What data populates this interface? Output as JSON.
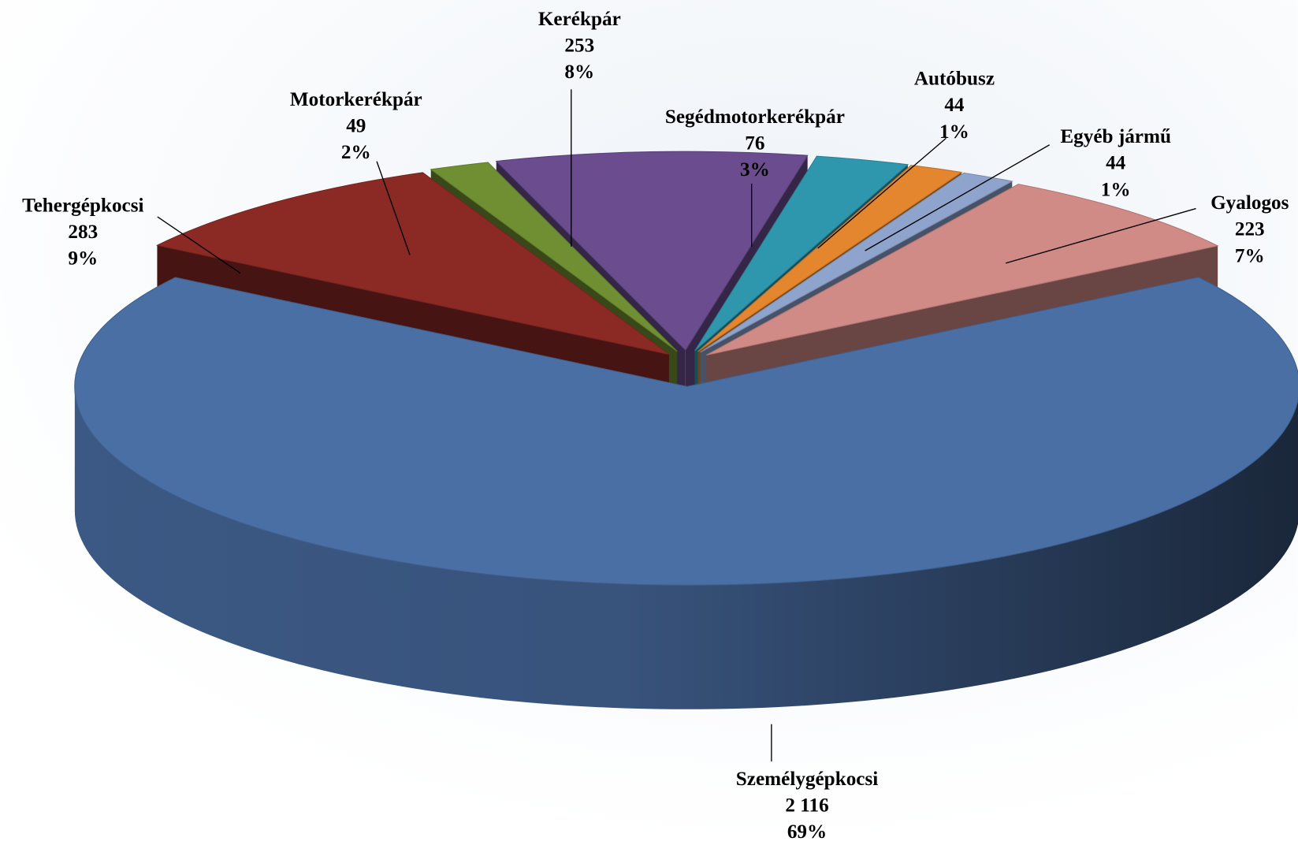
{
  "chart_data": {
    "type": "pie3d",
    "categories": [
      "Segédmotorkerékpár",
      "Autóbusz",
      "Egyéb jármű",
      "Gyalogos",
      "Személygépkocsi",
      "Tehergépkocsi",
      "Motorkerékpár",
      "Kerékpár"
    ],
    "values": [
      76,
      44,
      44,
      223,
      2116,
      283,
      49,
      253
    ],
    "value_labels": [
      "76",
      "44",
      "44",
      "223",
      "2 116",
      "283",
      "49",
      "253"
    ],
    "percent_labels": [
      "3%",
      "1%",
      "1%",
      "7%",
      "69%",
      "9%",
      "2%",
      "8%"
    ],
    "colors": [
      "#2f97ad",
      "#e3862e",
      "#8fa4cc",
      "#d18b87",
      "#4a6fa5",
      "#8b2a25",
      "#6f8f32",
      "#6a4c8f"
    ]
  }
}
